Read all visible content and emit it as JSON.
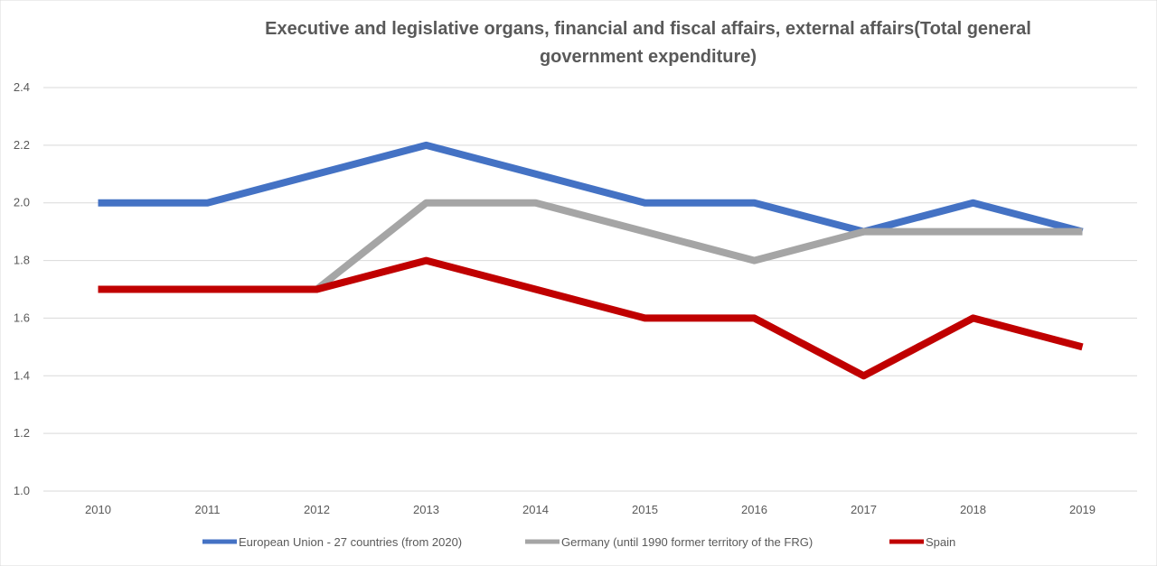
{
  "chart_data": {
    "type": "line",
    "title_lines": [
      "Executive and legislative organs, financial and fiscal affairs, external affairs(Total general",
      "government expenditure)"
    ],
    "categories": [
      "2010",
      "2011",
      "2012",
      "2013",
      "2014",
      "2015",
      "2016",
      "2017",
      "2018",
      "2019"
    ],
    "ylim": [
      1.0,
      2.4
    ],
    "yticks": [
      1.0,
      1.2,
      1.4,
      1.6,
      1.8,
      2.0,
      2.2,
      2.4
    ],
    "ytick_labels": [
      "1.0",
      "1.2",
      "1.4",
      "1.6",
      "1.8",
      "2.0",
      "2.2",
      "2.4"
    ],
    "grid": true,
    "legend_position": "bottom",
    "series": [
      {
        "name": "European Union - 27 countries (from 2020)",
        "color": "#4472c4",
        "values": [
          2.0,
          2.0,
          2.1,
          2.2,
          2.1,
          2.0,
          2.0,
          1.9,
          2.0,
          1.9
        ]
      },
      {
        "name": "Germany (until 1990 former territory of the FRG)",
        "color": "#a5a5a5",
        "values": [
          1.7,
          1.7,
          1.7,
          2.0,
          2.0,
          1.9,
          1.8,
          1.9,
          1.9,
          1.9
        ]
      },
      {
        "name": "Spain",
        "color": "#c00000",
        "values": [
          1.7,
          1.7,
          1.7,
          1.8,
          1.7,
          1.6,
          1.6,
          1.4,
          1.6,
          1.5
        ]
      }
    ]
  }
}
